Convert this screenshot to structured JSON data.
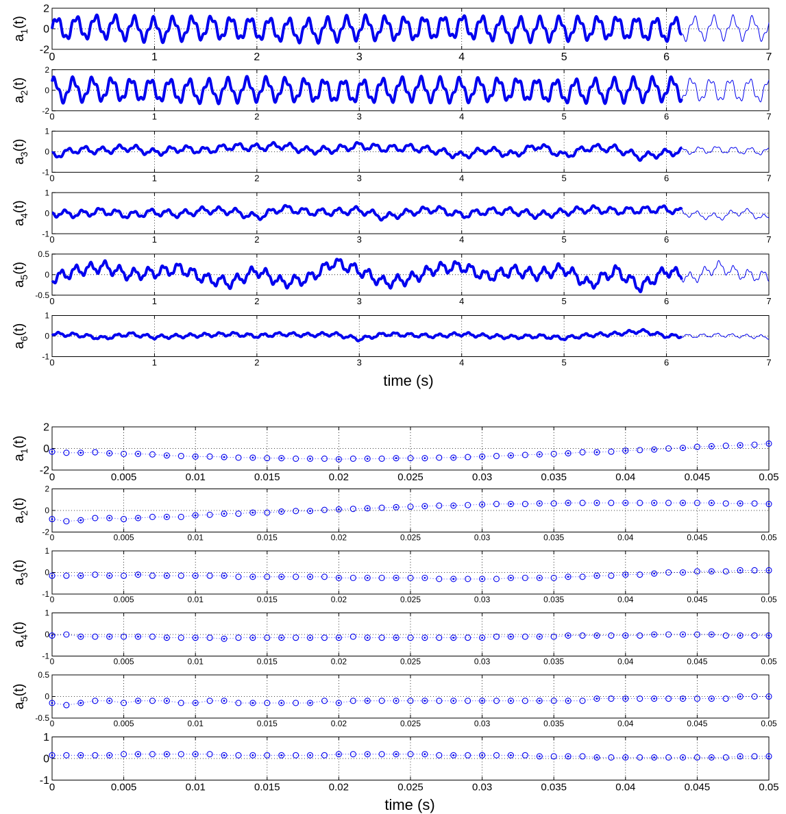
{
  "chart_data": [
    {
      "type": "line",
      "xlabel": "time (s)",
      "xlim": [
        0,
        7
      ],
      "xticks": [
        "0",
        "1",
        "2",
        "3",
        "4",
        "5",
        "6",
        "7"
      ],
      "grid": "dotted",
      "style": "thick markers up to ~6.15 s, thin line to 7 s",
      "color": "#0000ee",
      "panels": [
        {
          "ylabel_base": "a",
          "ylabel_sub": "1",
          "ylabel_suffix": "(t)",
          "ylim": [
            -2,
            2
          ],
          "yticks": [
            "2",
            "0",
            "-2"
          ],
          "series": [
            {
              "x": [
                0,
                0.5,
                1,
                1.5,
                2,
                2.5,
                3,
                3.5,
                4,
                4.5,
                5,
                5.5,
                6,
                6.5,
                7
              ],
              "y": [
                0,
                0.2,
                -0.1,
                0.1,
                0,
                -0.2,
                0.1,
                0,
                0.2,
                -0.1,
                0,
                0.1,
                -0.1,
                0.1,
                0
              ],
              "amplitude": 1.0,
              "frequency_hz": 5.3
            }
          ]
        },
        {
          "ylabel_base": "a",
          "ylabel_sub": "2",
          "ylabel_suffix": "(t)",
          "ylim": [
            -2,
            2
          ],
          "yticks": [
            "2",
            "0",
            "-2"
          ],
          "series": [
            {
              "x": [
                0,
                0.5,
                1,
                1.5,
                2,
                2.5,
                3,
                3.5,
                4,
                4.5,
                5,
                5.5,
                6,
                6.5,
                7
              ],
              "y": [
                0,
                0.1,
                0,
                -0.1,
                0.1,
                0,
                -0.1,
                0.1,
                0,
                0.1,
                -0.1,
                0,
                0.1,
                0,
                0
              ],
              "amplitude": 1.0,
              "frequency_hz": 5.3
            }
          ]
        },
        {
          "ylabel_base": "a",
          "ylabel_sub": "3",
          "ylabel_suffix": "(t)",
          "ylim": [
            -1,
            1
          ],
          "yticks": [
            "1",
            "0",
            "-1"
          ],
          "series": [
            {
              "x": [
                0,
                0.25,
                0.5,
                0.75,
                1,
                1.25,
                1.5,
                1.75,
                2,
                2.25,
                2.5,
                2.75,
                3,
                3.25,
                3.5,
                3.75,
                4,
                4.25,
                4.5,
                4.75,
                5,
                5.25,
                5.5,
                5.75,
                6,
                6.25,
                6.5,
                6.75,
                7
              ],
              "y": [
                -0.2,
                0.1,
                0.05,
                0.2,
                -0.05,
                0.15,
                0.05,
                0.25,
                0.2,
                0.3,
                0.05,
                0.1,
                0.3,
                0.15,
                0.2,
                0.05,
                -0.2,
                0.1,
                -0.15,
                0.3,
                -0.2,
                0.2,
                0.15,
                -0.25,
                -0.05,
                0.05,
                0.1,
                0.05,
                0.0
              ],
              "amplitude": 0.15,
              "frequency_hz": 6
            }
          ]
        },
        {
          "ylabel_base": "a",
          "ylabel_sub": "4",
          "ylabel_suffix": "(t)",
          "ylim": [
            -1,
            1
          ],
          "yticks": [
            "1",
            "0",
            "-1"
          ],
          "series": [
            {
              "x": [
                0,
                0.25,
                0.5,
                0.75,
                1,
                1.25,
                1.5,
                1.75,
                2,
                2.25,
                2.5,
                2.75,
                3,
                3.25,
                3.5,
                3.75,
                4,
                4.25,
                4.5,
                4.75,
                5,
                5.25,
                5.5,
                5.75,
                6,
                6.25,
                6.5,
                6.75,
                7
              ],
              "y": [
                0,
                -0.05,
                0.1,
                -0.1,
                0.05,
                -0.05,
                0.15,
                0.1,
                -0.2,
                0.25,
                0.05,
                0.05,
                0.15,
                -0.2,
                0.05,
                0.2,
                -0.1,
                0.1,
                0.1,
                -0.1,
                0.05,
                0.2,
                0.1,
                0.15,
                0.2,
                -0.05,
                -0.2,
                0.1,
                -0.3
              ],
              "amplitude": 0.15,
              "frequency_hz": 6
            }
          ]
        },
        {
          "ylabel_base": "a",
          "ylabel_sub": "5",
          "ylabel_suffix": "(t)",
          "ylim": [
            -0.5,
            0.5
          ],
          "yticks": [
            "0.5",
            "0",
            "-0.5"
          ],
          "series": [
            {
              "x": [
                0,
                0.25,
                0.5,
                0.75,
                1,
                1.25,
                1.5,
                1.75,
                2,
                2.25,
                2.5,
                2.75,
                3,
                3.25,
                3.5,
                3.75,
                4,
                4.25,
                4.5,
                4.75,
                5,
                5.25,
                5.5,
                5.75,
                6,
                6.25,
                6.5,
                6.75,
                7
              ],
              "y": [
                -0.1,
                0.1,
                0.2,
                0.0,
                0.05,
                0.15,
                -0.1,
                -0.2,
                0.1,
                -0.2,
                -0.1,
                0.3,
                0.1,
                -0.2,
                -0.1,
                0.15,
                0.2,
                -0.05,
                0.1,
                0.0,
                0.15,
                -0.25,
                0.1,
                -0.3,
                0.1,
                -0.1,
                0.2,
                0.0,
                -0.05
              ],
              "amplitude": 0.12,
              "frequency_hz": 7
            }
          ]
        },
        {
          "ylabel_base": "a",
          "ylabel_sub": "6",
          "ylabel_suffix": "(t)",
          "ylim": [
            -1,
            1
          ],
          "yticks": [
            "1",
            "0",
            "-1"
          ],
          "series": [
            {
              "x": [
                0,
                0.25,
                0.5,
                0.75,
                1,
                1.25,
                1.5,
                1.75,
                2,
                2.25,
                2.5,
                2.75,
                3,
                3.25,
                3.5,
                3.75,
                4,
                4.25,
                4.5,
                4.75,
                5,
                5.25,
                5.5,
                5.75,
                6,
                6.25,
                6.5,
                6.75,
                7
              ],
              "y": [
                0.1,
                0.05,
                -0.1,
                0.1,
                -0.05,
                0.0,
                0.05,
                0.1,
                0.0,
                0.1,
                0.05,
                0.1,
                -0.15,
                0.1,
                0.05,
                0.0,
                0.1,
                0.0,
                -0.05,
                0.0,
                -0.1,
                0.05,
                0.1,
                0.25,
                0.0,
                0.0,
                0.05,
                0.0,
                -0.05
              ],
              "amplitude": 0.08,
              "frequency_hz": 7
            }
          ]
        }
      ]
    },
    {
      "type": "scatter",
      "xlabel": "time (s)",
      "xlim": [
        0,
        0.05
      ],
      "xticks": [
        "0",
        "0.005",
        "0.01",
        "0.015",
        "0.02",
        "0.025",
        "0.03",
        "0.035",
        "0.04",
        "0.045",
        "0.05"
      ],
      "grid": "dotted",
      "marker": "circle (alternating plain / with center dot)",
      "color": "#0000ee",
      "x": [
        0,
        0.001,
        0.002,
        0.003,
        0.004,
        0.005,
        0.006,
        0.007,
        0.008,
        0.009,
        0.01,
        0.011,
        0.012,
        0.013,
        0.014,
        0.015,
        0.016,
        0.017,
        0.018,
        0.019,
        0.02,
        0.021,
        0.022,
        0.023,
        0.024,
        0.025,
        0.026,
        0.027,
        0.028,
        0.029,
        0.03,
        0.031,
        0.032,
        0.033,
        0.034,
        0.035,
        0.036,
        0.037,
        0.038,
        0.039,
        0.04,
        0.041,
        0.042,
        0.043,
        0.044,
        0.045,
        0.046,
        0.047,
        0.048,
        0.049,
        0.05
      ],
      "panels": [
        {
          "ylabel_base": "a",
          "ylabel_sub": "1",
          "ylabel_suffix": "(t)",
          "ylim": [
            -2,
            2
          ],
          "yticks": [
            "2",
            "0",
            "-2"
          ],
          "values": [
            -0.3,
            -0.4,
            -0.4,
            -0.35,
            -0.45,
            -0.5,
            -0.5,
            -0.55,
            -0.65,
            -0.7,
            -0.75,
            -0.75,
            -0.8,
            -0.85,
            -0.85,
            -0.9,
            -0.9,
            -0.95,
            -0.95,
            -0.95,
            -1.0,
            -0.95,
            -0.95,
            -0.95,
            -0.9,
            -0.9,
            -0.9,
            -0.85,
            -0.85,
            -0.8,
            -0.75,
            -0.7,
            -0.65,
            -0.6,
            -0.55,
            -0.5,
            -0.45,
            -0.35,
            -0.35,
            -0.3,
            -0.2,
            -0.15,
            -0.1,
            0.0,
            0.05,
            0.15,
            0.2,
            0.25,
            0.3,
            0.35,
            0.45
          ]
        },
        {
          "ylabel_base": "a",
          "ylabel_sub": "2",
          "ylabel_suffix": "(t)",
          "ylim": [
            -2,
            2
          ],
          "yticks": [
            "2",
            "0",
            "-2"
          ],
          "values": [
            -0.8,
            -1.0,
            -0.9,
            -0.7,
            -0.7,
            -0.8,
            -0.7,
            -0.6,
            -0.6,
            -0.6,
            -0.45,
            -0.4,
            -0.3,
            -0.3,
            -0.2,
            -0.2,
            -0.1,
            -0.05,
            -0.05,
            0.05,
            0.1,
            0.15,
            0.2,
            0.25,
            0.3,
            0.35,
            0.4,
            0.45,
            0.45,
            0.5,
            0.55,
            0.6,
            0.6,
            0.6,
            0.65,
            0.65,
            0.7,
            0.7,
            0.7,
            0.7,
            0.7,
            0.7,
            0.7,
            0.7,
            0.7,
            0.7,
            0.7,
            0.65,
            0.65,
            0.65,
            0.6
          ]
        },
        {
          "ylabel_base": "a",
          "ylabel_sub": "3",
          "ylabel_suffix": "(t)",
          "ylim": [
            -1,
            1
          ],
          "yticks": [
            "1",
            "0",
            "-1"
          ],
          "values": [
            -0.15,
            -0.15,
            -0.15,
            -0.1,
            -0.15,
            -0.15,
            -0.1,
            -0.15,
            -0.15,
            -0.15,
            -0.15,
            -0.15,
            -0.15,
            -0.2,
            -0.2,
            -0.2,
            -0.2,
            -0.2,
            -0.2,
            -0.2,
            -0.25,
            -0.25,
            -0.25,
            -0.25,
            -0.25,
            -0.25,
            -0.25,
            -0.3,
            -0.3,
            -0.3,
            -0.3,
            -0.3,
            -0.25,
            -0.25,
            -0.25,
            -0.25,
            -0.2,
            -0.2,
            -0.15,
            -0.15,
            -0.1,
            -0.1,
            -0.05,
            0.0,
            0.0,
            0.05,
            0.05,
            0.05,
            0.1,
            0.1,
            0.1
          ]
        },
        {
          "ylabel_base": "a",
          "ylabel_sub": "4",
          "ylabel_suffix": "(t)",
          "ylim": [
            -1,
            1
          ],
          "yticks": [
            "1",
            "0",
            "-1"
          ],
          "values": [
            -0.05,
            0.0,
            -0.1,
            -0.1,
            -0.1,
            -0.1,
            -0.1,
            -0.1,
            -0.15,
            -0.15,
            -0.15,
            -0.15,
            -0.2,
            -0.15,
            -0.15,
            -0.15,
            -0.15,
            -0.15,
            -0.15,
            -0.15,
            -0.15,
            -0.1,
            -0.15,
            -0.15,
            -0.15,
            -0.15,
            -0.15,
            -0.15,
            -0.15,
            -0.15,
            -0.15,
            -0.1,
            -0.1,
            -0.1,
            -0.1,
            -0.1,
            -0.05,
            -0.05,
            -0.05,
            -0.05,
            -0.05,
            -0.05,
            0.0,
            0.0,
            0.0,
            0.0,
            0.0,
            -0.05,
            -0.05,
            -0.05,
            -0.05
          ]
        },
        {
          "ylabel_base": "a",
          "ylabel_sub": "5",
          "ylabel_suffix": "(t)",
          "ylim": [
            -0.5,
            0.5
          ],
          "yticks": [
            "0.5",
            "0",
            "-0.5"
          ],
          "values": [
            -0.15,
            -0.2,
            -0.15,
            -0.1,
            -0.1,
            -0.15,
            -0.1,
            -0.1,
            -0.1,
            -0.15,
            -0.15,
            -0.1,
            -0.1,
            -0.15,
            -0.15,
            -0.15,
            -0.15,
            -0.15,
            -0.15,
            -0.1,
            -0.15,
            -0.1,
            -0.1,
            -0.1,
            -0.1,
            -0.1,
            -0.1,
            -0.1,
            -0.1,
            -0.1,
            -0.1,
            -0.1,
            -0.1,
            -0.1,
            -0.1,
            -0.1,
            -0.1,
            -0.1,
            -0.05,
            -0.05,
            -0.05,
            -0.05,
            -0.05,
            -0.05,
            -0.05,
            -0.05,
            -0.05,
            -0.05,
            0.0,
            0.0,
            0.0
          ]
        },
        {
          "ylabel_base": "",
          "ylabel_sub": "",
          "ylabel_suffix": "",
          "ylim": [
            -1,
            1
          ],
          "yticks": [
            "1",
            "0",
            "-1"
          ],
          "values": [
            0.15,
            0.15,
            0.15,
            0.15,
            0.15,
            0.2,
            0.2,
            0.2,
            0.2,
            0.2,
            0.2,
            0.2,
            0.15,
            0.15,
            0.15,
            0.15,
            0.15,
            0.15,
            0.15,
            0.15,
            0.2,
            0.2,
            0.2,
            0.2,
            0.2,
            0.2,
            0.2,
            0.15,
            0.15,
            0.15,
            0.15,
            0.15,
            0.15,
            0.15,
            0.1,
            0.1,
            0.1,
            0.1,
            0.05,
            0.05,
            0.05,
            0.05,
            0.05,
            0.05,
            0.05,
            0.05,
            0.05,
            0.05,
            0.1,
            0.1,
            0.1
          ]
        }
      ]
    }
  ]
}
